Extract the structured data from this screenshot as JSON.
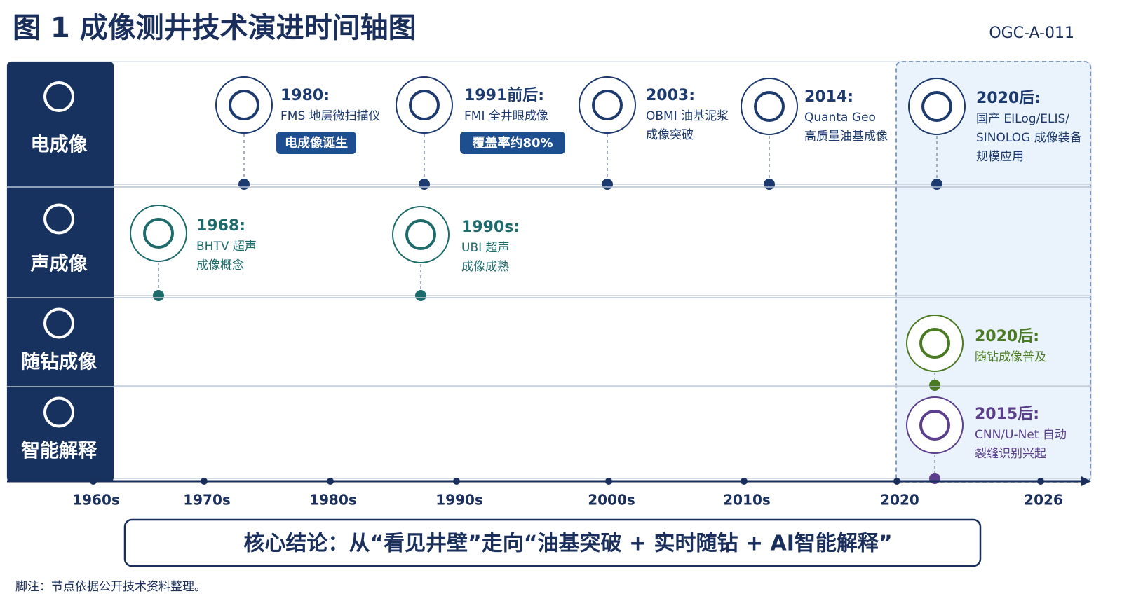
{
  "header": {
    "title": "图 1 成像测井技术演进时间轴图",
    "code": "OGC-A-011"
  },
  "lanes": [
    {
      "label": "电成像",
      "events": [
        {
          "year": "1980:",
          "lines": [
            "FMS 地层微扫描仪"
          ],
          "badge": "电成像诞生"
        },
        {
          "year": "1991前后:",
          "lines": [
            "FMI 全井眼成像"
          ],
          "badge": "覆盖率约80%"
        },
        {
          "year": "2003:",
          "lines": [
            "OBMI 油基泥浆",
            "成像突破"
          ]
        },
        {
          "year": "2014:",
          "lines": [
            "Quanta Geo",
            "高质量油基成像"
          ]
        },
        {
          "year": "2020后:",
          "lines": [
            "国产 EILog/ELIS/",
            "SINOLOG 成像装备",
            "规模应用"
          ]
        }
      ]
    },
    {
      "label": "声成像",
      "events": [
        {
          "year": "1968:",
          "lines": [
            "BHTV 超声",
            "成像概念"
          ]
        },
        {
          "year": "1990s:",
          "lines": [
            "UBI 超声",
            "成像成熟"
          ]
        }
      ]
    },
    {
      "label": "随钻成像",
      "events": [
        {
          "year": "2020后:",
          "lines": [
            "随钻成像普及"
          ]
        }
      ]
    },
    {
      "label": "智能解释",
      "events": [
        {
          "year": "2015后:",
          "lines": [
            "CNN/U-Net 自动",
            "裂缝识别兴起"
          ]
        }
      ]
    }
  ],
  "axis": {
    "labels": [
      "1960s",
      "1970s",
      "1980s",
      "1990s",
      "2000s",
      "2010s",
      "2020",
      "2026"
    ]
  },
  "conclusion": "核心结论：从“看见井壁”走向“油基突破 + 实时随钻 + AI智能解释”",
  "footnote": "脚注：节点依据公开技术资料整理。"
}
